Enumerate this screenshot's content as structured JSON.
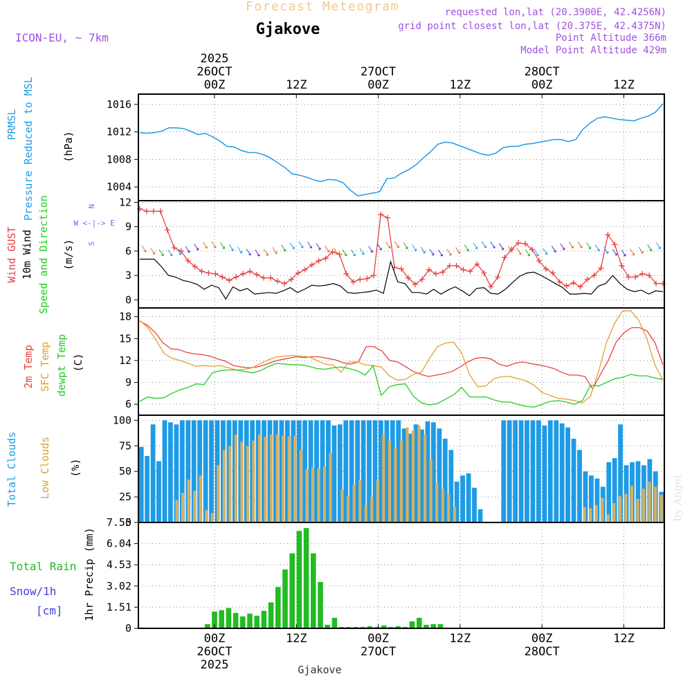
{
  "header": {
    "super_title": "Forecast Meteogram",
    "location": "Gjakove",
    "model": "ICON-EU, ~ 7km",
    "requested": "requested lon,lat (20.3900E, 42.4256N)",
    "grid_point": "grid point closest lon,lat (20.375E, 42.4375N)",
    "point_alt": "Point Altitude 366m",
    "model_alt": "Model Point Altitude 429m",
    "watermark": "by Angel",
    "footer_location": "Gjakove"
  },
  "colors": {
    "pressure": "#1e9be6",
    "gust": "#e84040",
    "wind": "#000000",
    "temp2m": "#e84040",
    "sfc": "#e0a030",
    "dewpt": "#22cc22",
    "total_cloud": "#1e9be6",
    "low_cloud": "#d8b060",
    "rain": "#22bb22",
    "snow": "#4040e0",
    "label_purple": "#a050e0",
    "super_title": "#f0c890"
  },
  "time_axis": {
    "top_labels": [
      {
        "lines": [
          "2025",
          "26OCT",
          "00Z"
        ]
      },
      {
        "lines": [
          "12Z"
        ]
      },
      {
        "lines": [
          "27OCT",
          "00Z"
        ]
      },
      {
        "lines": [
          "12Z"
        ]
      },
      {
        "lines": [
          "28OCT",
          "00Z"
        ]
      },
      {
        "lines": [
          "12Z"
        ]
      }
    ],
    "bottom_labels": [
      {
        "lines": [
          "00Z",
          "26OCT",
          "2025"
        ]
      },
      {
        "lines": [
          "12Z"
        ]
      },
      {
        "lines": [
          "00Z",
          "27OCT"
        ]
      },
      {
        "lines": [
          "12Z"
        ]
      },
      {
        "lines": [
          "00Z",
          "28OCT"
        ]
      },
      {
        "lines": [
          "12Z"
        ]
      }
    ]
  },
  "chart_data": [
    {
      "type": "line",
      "panel": "pressure",
      "ylabel_lines": [
        "PRMSL",
        "Pressure Reduced to MSL"
      ],
      "unit": "(hPa)",
      "ylim": [
        1002,
        1017.5
      ],
      "yticks": [
        1004,
        1008,
        1012,
        1016
      ],
      "tick_labels": [
        "1004",
        "1008",
        "1012",
        "1016"
      ],
      "series": [
        {
          "name": "PRMSL",
          "values": [
            1011.9,
            1011.8,
            1011.9,
            1012.1,
            1012.6,
            1012.6,
            1012.5,
            1012.1,
            1011.6,
            1011.8,
            1011.3,
            1010.7,
            1009.9,
            1009.8,
            1009.3,
            1009.0,
            1009.0,
            1008.7,
            1008.2,
            1007.5,
            1006.8,
            1005.9,
            1005.7,
            1005.4,
            1005.0,
            1004.8,
            1005.1,
            1005.0,
            1004.6,
            1003.5,
            1002.7,
            1002.9,
            1003.1,
            1003.3,
            1005.2,
            1005.3,
            1006.0,
            1006.5,
            1007.2,
            1008.2,
            1009.1,
            1010.2,
            1010.5,
            1010.4,
            1010.0,
            1009.6,
            1009.2,
            1008.8,
            1008.6,
            1008.9,
            1009.7,
            1009.9,
            1009.9,
            1010.2,
            1010.3,
            1010.5,
            1010.7,
            1010.9,
            1010.9,
            1010.6,
            1010.9,
            1012.4,
            1013.3,
            1014.0,
            1014.2,
            1014.0,
            1013.8,
            1013.7,
            1013.6,
            1014.0,
            1014.3,
            1014.9,
            1016.1
          ]
        }
      ]
    },
    {
      "type": "line",
      "panel": "wind",
      "ylabel_lines": [
        "Wind GUST",
        "10m Wind",
        "Speed and Direction"
      ],
      "unit": "(m/s)",
      "compass": [
        "N",
        "W <-|-> E",
        "S"
      ],
      "ylim": [
        -1,
        12.2
      ],
      "yticks": [
        0,
        3,
        6,
        9,
        12
      ],
      "tick_labels": [
        "0",
        "3",
        "6",
        "9",
        "12"
      ],
      "series": [
        {
          "name": "Wind GUST",
          "values": [
            11.2,
            10.9,
            10.9,
            10.9,
            8.6,
            6.4,
            6.0,
            4.8,
            4.1,
            3.5,
            3.3,
            3.2,
            2.8,
            2.4,
            2.8,
            3.2,
            3.5,
            3.1,
            2.7,
            2.7,
            2.3,
            2.0,
            2.5,
            3.3,
            3.7,
            4.3,
            4.8,
            5.1,
            5.9,
            5.6,
            3.2,
            2.2,
            2.5,
            2.6,
            3.0,
            10.5,
            10.1,
            4.0,
            3.8,
            2.7,
            1.9,
            2.5,
            3.7,
            3.2,
            3.4,
            4.2,
            4.2,
            3.7,
            3.5,
            4.4,
            3.3,
            1.6,
            2.8,
            5.2,
            6.2,
            7.0,
            6.9,
            6.2,
            4.8,
            3.8,
            3.3,
            2.2,
            1.7,
            2.1,
            1.6,
            2.5,
            3.0,
            3.9,
            8.0,
            6.8,
            4.2,
            2.8,
            2.8,
            3.2,
            3.0,
            2.0,
            2.0
          ]
        },
        {
          "name": "10m Wind",
          "values": [
            5.0,
            5.0,
            5.0,
            4.1,
            3.0,
            2.8,
            2.4,
            2.2,
            1.9,
            1.3,
            1.8,
            1.5,
            0.1,
            1.6,
            1.1,
            1.4,
            0.7,
            0.8,
            0.9,
            0.8,
            1.1,
            1.5,
            0.9,
            1.3,
            1.8,
            1.7,
            1.8,
            2.0,
            1.7,
            0.9,
            0.8,
            0.9,
            1.0,
            1.2,
            0.8,
            4.7,
            2.2,
            2.0,
            0.9,
            0.9,
            0.7,
            1.3,
            0.7,
            1.2,
            1.6,
            1.1,
            0.5,
            1.4,
            1.5,
            0.8,
            0.7,
            1.3,
            2.1,
            2.9,
            3.3,
            3.4,
            3.0,
            2.5,
            2.0,
            1.5,
            0.7,
            0.7,
            0.8,
            0.7,
            1.7,
            2.0,
            3.0,
            2.0,
            1.3,
            1.0,
            1.2,
            0.7,
            1.1,
            1.0
          ]
        }
      ]
    },
    {
      "type": "line",
      "panel": "temperature",
      "ylabel_lines": [
        "2m Temp",
        "SFC Temp",
        "dewpt Temp"
      ],
      "unit": "(C)",
      "ylim": [
        4.5,
        19.2
      ],
      "yticks": [
        6,
        9,
        12,
        15,
        18
      ],
      "tick_labels": [
        "6",
        "9",
        "12",
        "15",
        "18"
      ],
      "series": [
        {
          "name": "2m Temp",
          "values": [
            17.4,
            16.8,
            15.8,
            14.4,
            13.6,
            13.5,
            13.1,
            12.9,
            12.8,
            12.6,
            12.2,
            11.9,
            11.3,
            11.1,
            11.0,
            11.1,
            11.4,
            11.8,
            12.1,
            12.3,
            12.5,
            12.4,
            12.5,
            12.5,
            12.3,
            12.1,
            11.7,
            11.5,
            11.8,
            13.9,
            13.9,
            13.3,
            12.0,
            11.8,
            11.2,
            10.5,
            10.1,
            9.8,
            10.0,
            10.2,
            10.5,
            11.1,
            11.8,
            12.3,
            12.4,
            12.2,
            11.5,
            11.2,
            11.6,
            11.8,
            11.6,
            11.4,
            11.2,
            10.9,
            10.4,
            10.0,
            10.0,
            9.8,
            8.1,
            10.1,
            12.0,
            14.5,
            15.8,
            16.5,
            16.5,
            16.0,
            14.4,
            11.4
          ]
        },
        {
          "name": "SFC Temp",
          "values": [
            17.5,
            16.5,
            14.8,
            13.0,
            12.3,
            12.0,
            11.6,
            11.2,
            11.3,
            11.2,
            11.3,
            11.0,
            10.7,
            10.8,
            11.0,
            11.6,
            12.1,
            12.5,
            12.6,
            12.7,
            12.6,
            12.5,
            12.0,
            11.5,
            11.4,
            10.4,
            11.8,
            11.8,
            11.4,
            11.3,
            11.1,
            9.9,
            9.3,
            9.4,
            10.1,
            10.4,
            12.3,
            13.9,
            14.4,
            14.5,
            13.0,
            10.0,
            8.4,
            8.5,
            9.5,
            9.8,
            9.8,
            9.5,
            9.2,
            8.6,
            7.6,
            7.2,
            6.8,
            6.7,
            6.5,
            6.2,
            7.1,
            10.5,
            14.5,
            17.1,
            18.8,
            18.8,
            17.5,
            15.0,
            11.4,
            9.3
          ]
        },
        {
          "name": "dewpt Temp",
          "values": [
            6.4,
            7.0,
            6.8,
            6.9,
            7.5,
            8.0,
            8.3,
            8.8,
            8.7,
            10.3,
            10.6,
            10.7,
            10.7,
            10.5,
            10.3,
            10.6,
            11.2,
            11.6,
            11.5,
            11.4,
            11.4,
            11.2,
            10.9,
            10.8,
            11.0,
            11.1,
            10.9,
            10.6,
            10.0,
            11.3,
            7.2,
            8.4,
            8.7,
            8.8,
            7.1,
            6.2,
            5.9,
            6.1,
            6.7,
            7.3,
            8.3,
            7.0,
            7.0,
            7.0,
            6.6,
            6.3,
            6.3,
            6.0,
            5.7,
            5.6,
            6.0,
            6.4,
            6.5,
            6.3,
            6.0,
            6.5,
            8.6,
            8.5,
            9.0,
            9.5,
            9.7,
            10.1,
            9.9,
            9.9,
            9.6,
            9.4
          ]
        }
      ]
    },
    {
      "type": "bar",
      "panel": "clouds",
      "ylabel_lines": [
        "Total Clouds",
        "Low Clouds"
      ],
      "unit": "(%)",
      "ylim": [
        0,
        105
      ],
      "yticks": [
        0,
        25,
        50,
        75,
        100
      ],
      "tick_labels": [
        "0",
        "25",
        "50",
        "75",
        "100"
      ],
      "series": [
        {
          "name": "Total Clouds",
          "values": [
            74,
            65,
            96,
            60,
            100,
            98,
            96,
            100,
            100,
            100,
            100,
            100,
            100,
            100,
            100,
            100,
            100,
            100,
            100,
            100,
            100,
            100,
            100,
            100,
            100,
            100,
            100,
            100,
            100,
            100,
            100,
            100,
            100,
            95,
            96,
            100,
            100,
            100,
            100,
            100,
            100,
            100,
            100,
            100,
            100,
            92,
            87,
            96,
            91,
            99,
            98,
            92,
            82,
            71,
            40,
            46,
            48,
            34,
            13,
            0,
            0,
            0,
            100,
            100,
            100,
            100,
            100,
            100,
            100,
            95,
            100,
            100,
            97,
            93,
            82,
            71,
            50,
            46,
            43,
            35,
            59,
            63,
            96,
            56,
            59,
            60,
            56,
            62,
            50,
            30
          ]
        },
        {
          "name": "Low Clouds",
          "values": [
            0,
            0,
            0,
            0,
            0,
            0,
            22,
            29,
            42,
            31,
            46,
            12,
            9,
            56,
            71,
            75,
            86,
            79,
            75,
            80,
            86,
            84,
            86,
            86,
            85,
            84,
            85,
            71,
            52,
            54,
            53,
            55,
            68,
            0,
            32,
            26,
            37,
            42,
            17,
            25,
            41,
            86,
            80,
            73,
            80,
            93,
            90,
            95,
            86,
            62,
            39,
            33,
            28,
            15,
            0,
            0,
            0,
            0,
            0,
            0,
            0,
            0,
            0,
            0,
            0,
            0,
            0,
            0,
            0,
            0,
            0,
            0,
            0,
            0,
            0,
            15,
            14,
            17,
            24,
            8,
            19,
            26,
            28,
            36,
            23,
            33,
            40,
            35,
            27
          ]
        }
      ]
    },
    {
      "type": "bar",
      "panel": "precip",
      "ylabel_lines": [
        "Total Rain",
        "Snow/1h",
        "[cm]"
      ],
      "unit": "1hr Precip (mm)",
      "ylim": [
        0,
        7.55
      ],
      "yticks": [
        0,
        1.51,
        3.02,
        4.53,
        6.04,
        7.55
      ],
      "tick_labels": [
        "0",
        "1.51",
        "3.02",
        "4.53",
        "6.04",
        "7.55"
      ],
      "series": [
        {
          "name": "Total Rain",
          "values": [
            0.3,
            1.2,
            1.3,
            1.45,
            1.1,
            0.85,
            1.05,
            0.9,
            1.25,
            1.85,
            2.95,
            4.2,
            5.35,
            6.95,
            7.15,
            5.35,
            3.3,
            0.25,
            0.75,
            0.1,
            0.1,
            0.1,
            0.1,
            0.15,
            0.1,
            0.2,
            0.1,
            0.15,
            0.1,
            0.5,
            0.75,
            0.25,
            0.3,
            0.3
          ]
        },
        {
          "name": "Snow",
          "values": [
            0,
            0,
            0,
            0,
            0,
            0,
            0,
            0,
            0,
            0
          ]
        }
      ]
    }
  ]
}
